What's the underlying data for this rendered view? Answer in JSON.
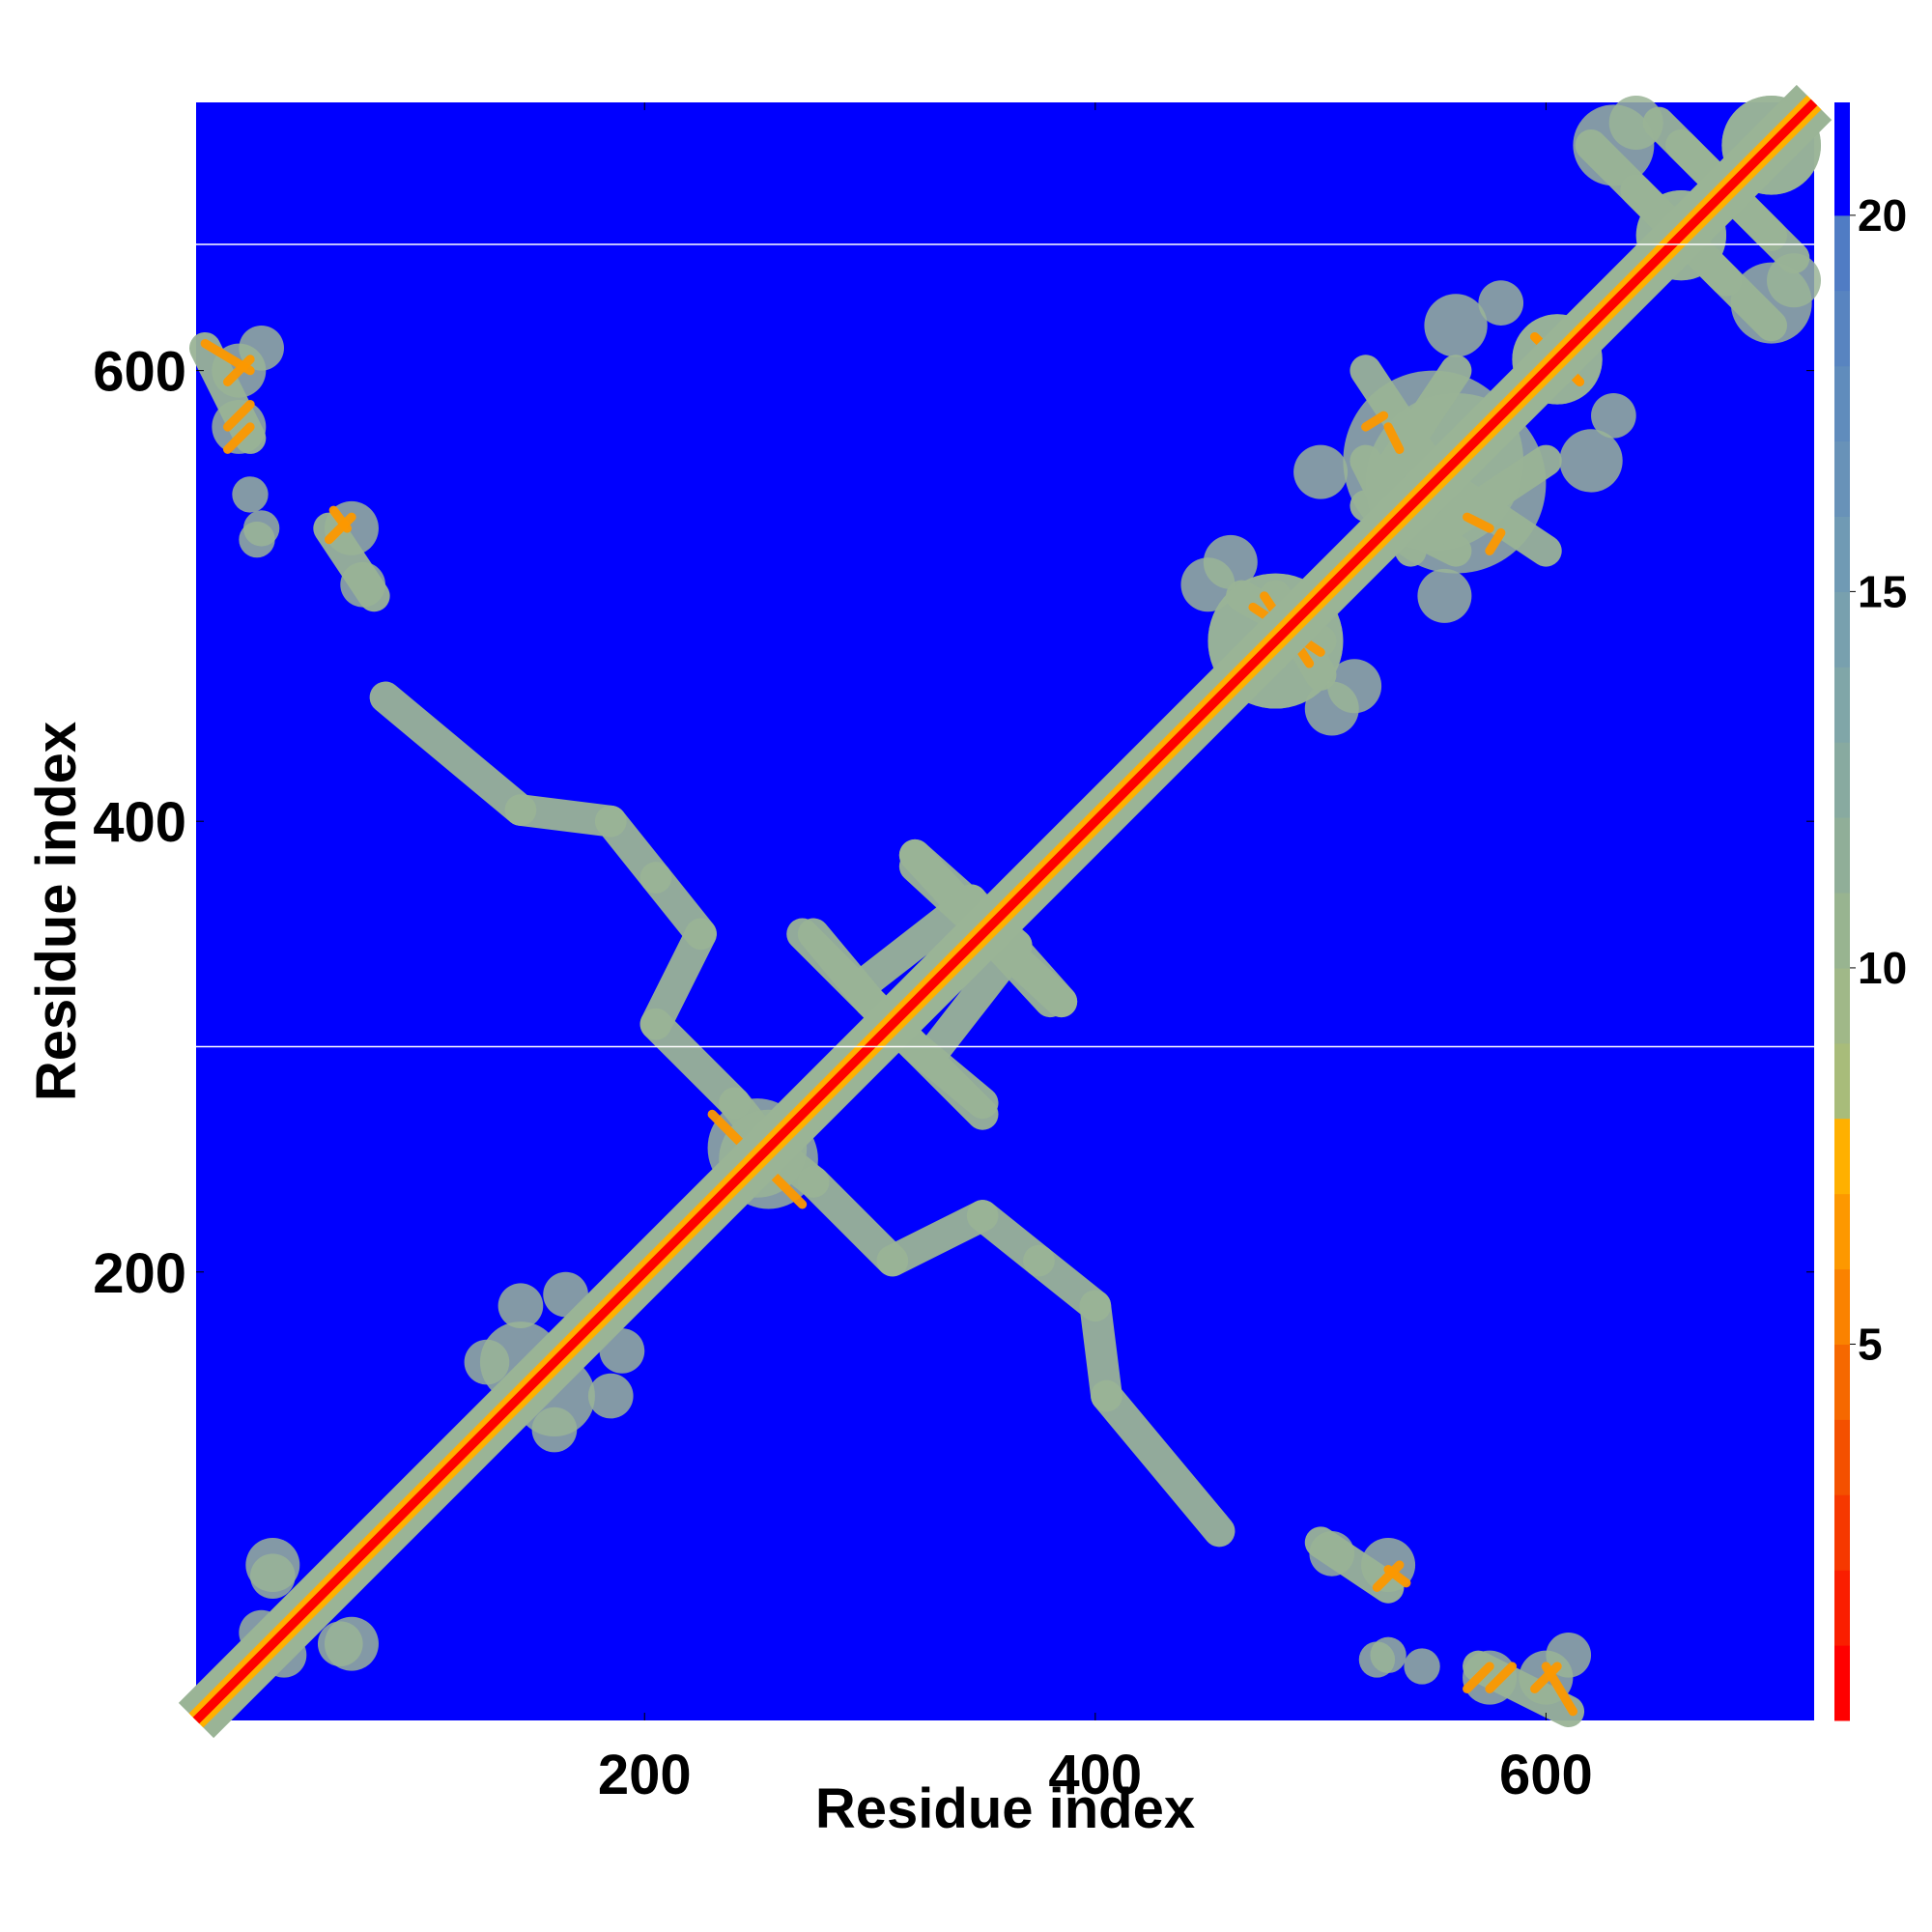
{
  "chart_data": {
    "type": "heatmap",
    "title": "",
    "xlabel": "Residue index",
    "ylabel": "Residue index",
    "xlim": [
      1,
      719
    ],
    "ylim": [
      1,
      719
    ],
    "x_ticks": [
      200,
      400,
      600
    ],
    "y_ticks": [
      200,
      400,
      600
    ],
    "x_tick_labels": [
      "200",
      "400",
      "600"
    ],
    "y_tick_labels": [
      "200",
      "400",
      "600"
    ],
    "colorbar": {
      "range": [
        0,
        21.5
      ],
      "ticks": [
        5,
        10,
        15,
        20
      ],
      "tick_labels": [
        "5",
        "10",
        "15",
        "20"
      ],
      "levels": [
        {
          "max": 1,
          "color": "#ff0000"
        },
        {
          "max": 2,
          "color": "#fa1e00"
        },
        {
          "max": 3,
          "color": "#f63800"
        },
        {
          "max": 4,
          "color": "#f45000"
        },
        {
          "max": 5,
          "color": "#f66800"
        },
        {
          "max": 6,
          "color": "#fa8200"
        },
        {
          "max": 7,
          "color": "#fd9800"
        },
        {
          "max": 8,
          "color": "#ffb000"
        },
        {
          "max": 9,
          "color": "#a8bc7a"
        },
        {
          "max": 10,
          "color": "#a0b888"
        },
        {
          "max": 11,
          "color": "#98b490"
        },
        {
          "max": 12,
          "color": "#90ae98"
        },
        {
          "max": 13,
          "color": "#88aaa0"
        },
        {
          "max": 14,
          "color": "#80a6a8"
        },
        {
          "max": 15,
          "color": "#78a0ae"
        },
        {
          "max": 16,
          "color": "#709ab4"
        },
        {
          "max": 17,
          "color": "#6892b8"
        },
        {
          "max": 18,
          "color": "#608cbc"
        },
        {
          "max": 19,
          "color": "#5884c0"
        },
        {
          "max": 20,
          "color": "#507cc4"
        },
        {
          "max": 21.5,
          "color": "#0000ff"
        }
      ]
    },
    "background_color": "#0000ff",
    "diagonal_color": "#ff0000",
    "contact_color": "#9ab496",
    "contact_segments": [
      {
        "from": [
          5,
          610
        ],
        "to": [
          25,
          570
        ]
      },
      {
        "from": [
          60,
          530
        ],
        "to": [
          80,
          500
        ]
      },
      {
        "from": [
          85,
          455
        ],
        "to": [
          145,
          405
        ]
      },
      {
        "from": [
          145,
          405
        ],
        "to": [
          185,
          400
        ]
      },
      {
        "from": [
          185,
          400
        ],
        "to": [
          205,
          375
        ]
      },
      {
        "from": [
          205,
          375
        ],
        "to": [
          225,
          350
        ]
      },
      {
        "from": [
          225,
          350
        ],
        "to": [
          205,
          310
        ]
      },
      {
        "from": [
          205,
          310
        ],
        "to": [
          240,
          275
        ]
      },
      {
        "from": [
          240,
          275
        ],
        "to": [
          260,
          250
        ]
      },
      {
        "from": [
          270,
          350
        ],
        "to": [
          320,
          300
        ]
      },
      {
        "from": [
          320,
          300
        ],
        "to": [
          350,
          275
        ]
      },
      {
        "from": [
          320,
          380
        ],
        "to": [
          385,
          320
        ]
      },
      {
        "from": [
          300,
          330
        ],
        "to": [
          345,
          365
        ]
      },
      {
        "from": [
          345,
          365
        ],
        "to": [
          385,
          320
        ]
      },
      {
        "from": [
          480,
          500
        ],
        "to": [
          500,
          465
        ]
      },
      {
        "from": [
          540,
          560
        ],
        "to": [
          600,
          520
        ]
      },
      {
        "from": [
          520,
          560
        ],
        "to": [
          540,
          520
        ]
      },
      {
        "from": [
          555,
          530
        ],
        "to": [
          600,
          560
        ]
      },
      {
        "from": [
          640,
          680
        ],
        "to": [
          700,
          620
        ]
      },
      {
        "from": [
          660,
          700
        ],
        "to": [
          710,
          650
        ]
      }
    ],
    "contact_blobs": [
      {
        "x": 30,
        "y": 610,
        "r": 10
      },
      {
        "x": 25,
        "y": 545,
        "r": 8
      },
      {
        "x": 28,
        "y": 525,
        "r": 8
      },
      {
        "x": 35,
        "y": 70,
        "r": 12
      },
      {
        "x": 30,
        "y": 40,
        "r": 10
      },
      {
        "x": 65,
        "y": 35,
        "r": 10
      },
      {
        "x": 80,
        "y": 80,
        "r": 10
      },
      {
        "x": 145,
        "y": 160,
        "r": 18
      },
      {
        "x": 165,
        "y": 190,
        "r": 10
      },
      {
        "x": 185,
        "y": 145,
        "r": 10
      },
      {
        "x": 160,
        "y": 130,
        "r": 10
      },
      {
        "x": 250,
        "y": 255,
        "r": 22
      },
      {
        "x": 480,
        "y": 480,
        "r": 30
      },
      {
        "x": 450,
        "y": 505,
        "r": 12
      },
      {
        "x": 515,
        "y": 460,
        "r": 12
      },
      {
        "x": 560,
        "y": 550,
        "r": 40
      },
      {
        "x": 500,
        "y": 555,
        "r": 12
      },
      {
        "x": 560,
        "y": 620,
        "r": 14
      },
      {
        "x": 605,
        "y": 605,
        "r": 20
      },
      {
        "x": 630,
        "y": 580,
        "r": 10
      },
      {
        "x": 660,
        "y": 660,
        "r": 20
      },
      {
        "x": 700,
        "y": 700,
        "r": 22
      },
      {
        "x": 700,
        "y": 630,
        "r": 18
      },
      {
        "x": 640,
        "y": 710,
        "r": 12
      },
      {
        "x": 530,
        "y": 70,
        "r": 12
      },
      {
        "x": 505,
        "y": 75,
        "r": 10
      },
      {
        "x": 575,
        "y": 20,
        "r": 12
      },
      {
        "x": 600,
        "y": 20,
        "r": 12
      },
      {
        "x": 530,
        "y": 30,
        "r": 8
      }
    ],
    "close_contacts": [
      {
        "from": [
          5,
          612
        ],
        "to": [
          25,
          600
        ]
      },
      {
        "from": [
          15,
          575
        ],
        "to": [
          25,
          585
        ]
      },
      {
        "from": [
          62,
          538
        ],
        "to": [
          68,
          530
        ]
      },
      {
        "from": [
          230,
          270
        ],
        "to": [
          255,
          245
        ]
      },
      {
        "from": [
          475,
          500
        ],
        "to": [
          495,
          470
        ]
      },
      {
        "from": [
          475,
          470
        ],
        "to": [
          495,
          495
        ]
      },
      {
        "from": [
          520,
          575
        ],
        "to": [
          528,
          580
        ]
      },
      {
        "from": [
          595,
          615
        ],
        "to": [
          615,
          595
        ]
      },
      {
        "from": [
          565,
          535
        ],
        "to": [
          575,
          530
        ]
      },
      {
        "from": [
          525,
          60
        ],
        "to": [
          535,
          70
        ]
      },
      {
        "from": [
          565,
          15
        ],
        "to": [
          575,
          25
        ]
      },
      {
        "from": [
          595,
          15
        ],
        "to": [
          605,
          25
        ]
      }
    ],
    "white_lines_y": [
      300,
      656
    ]
  }
}
